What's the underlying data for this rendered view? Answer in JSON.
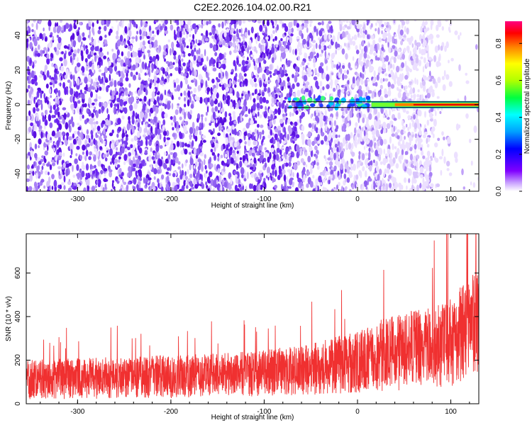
{
  "figure": {
    "title": "C2E2.2026.104.02.00.R21"
  },
  "colors": {
    "spec_low": "#ece0ff",
    "spec_high": "#5a10e0",
    "line": "#f03030",
    "frame": "#000000"
  },
  "colorbar": {
    "label": "Normalized spectral amplitude",
    "range": [
      0.0,
      0.92
    ],
    "ticks": [
      0.0,
      0.2,
      0.4,
      0.6,
      0.8
    ],
    "tick_labels": [
      "0.0",
      "0.2",
      "0.4",
      "0.6",
      "0.8"
    ]
  },
  "chart_data": [
    {
      "type": "heatmap",
      "name": "spectrogram",
      "xlabel": "Height of straight line (km)",
      "ylabel": "Frequency (Hz)",
      "xlim": [
        -355,
        130
      ],
      "ylim": [
        -50,
        49
      ],
      "xticks": [
        -300,
        -200,
        -100,
        0,
        100
      ],
      "xtick_labels": [
        "-300",
        "-200",
        "-100",
        "0",
        "100"
      ],
      "yticks": [
        -40,
        -20,
        0,
        20,
        40
      ],
      "ytick_labels": [
        "-40",
        "-20",
        "0",
        "20",
        "40"
      ],
      "signal_band": {
        "x_start": -75,
        "x_end": 130,
        "frequency": 0,
        "description": "Bright narrow band near 0 Hz from about -75 km to +130 km"
      },
      "noise_description": "Purple speckle noise, dense on the left, fading to white beyond ~80 km"
    },
    {
      "type": "line",
      "name": "snr",
      "xlabel": "Height of straight line (km)",
      "ylabel": "SNR (10 * v/v)",
      "xlim": [
        -355,
        130
      ],
      "ylim": [
        0,
        780
      ],
      "xticks": [
        -300,
        -200,
        -100,
        0,
        100
      ],
      "xtick_labels": [
        "-300",
        "-200",
        "-100",
        "0",
        "100"
      ],
      "yticks": [
        0,
        200,
        400,
        600
      ],
      "ytick_labels": [
        "0",
        "200",
        "400",
        "600"
      ],
      "envelope": {
        "x": [
          -355,
          -300,
          -250,
          -200,
          -150,
          -100,
          -50,
          0,
          20,
          50,
          80,
          100,
          115,
          130
        ],
        "upper": [
          200,
          210,
          215,
          225,
          230,
          245,
          280,
          330,
          380,
          420,
          440,
          480,
          560,
          650
        ],
        "lower": [
          20,
          20,
          25,
          25,
          30,
          35,
          40,
          50,
          55,
          60,
          70,
          80,
          100,
          120
        ]
      },
      "peak": {
        "x": 127,
        "y": 780
      }
    }
  ]
}
